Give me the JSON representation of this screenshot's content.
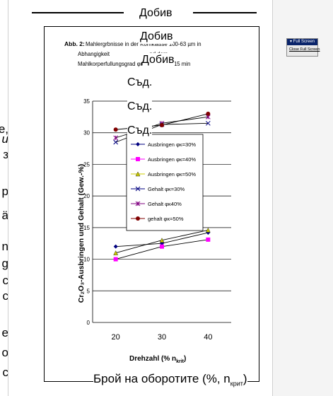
{
  "figure_caption": {
    "prefix": "Abb. 2:",
    "lines": [
      "Mahlergrbnisse in der Kornklasse 100-63 µm in",
      "Abhangigkeit                          nd dem",
      "Mahlkorperfullungsgrad φκ, Mahldauer 15 min"
    ]
  },
  "overlay_labels": {
    "dobiv": [
      "Добив",
      "Добив",
      "Добив"
    ],
    "sad": [
      "Съд.",
      "Съд.",
      "Съд."
    ],
    "x_axis_translation": "Брой на оборотите (%, n",
    "x_axis_translation_sub": "крит",
    "x_axis_translation_close": ")"
  },
  "left_margin_chars": [
    "e,",
    "u",
    "з",
    "р",
    "ä",
    "n",
    "g",
    "c",
    "с",
    "e",
    "о",
    "c"
  ],
  "fullscreen_toolbar": {
    "title": "▾ Full Screen",
    "close_label": "Close Full Screen"
  },
  "chart_data": {
    "type": "line",
    "xlabel": "Drehzahl (% n",
    "xlabel_sub": "krit",
    "xlabel_close": ")",
    "ylabel": "Cr₂O₃-Ausbringen und Gehalt (Gew.-%)",
    "ylim": [
      0,
      35
    ],
    "yticks": [
      "0",
      "5",
      "10",
      "15",
      "20",
      "25",
      "30",
      "35"
    ],
    "xticks": [
      "20",
      "30",
      "40"
    ],
    "x": [
      20,
      30,
      40
    ],
    "grid": true,
    "legend_position": "center",
    "series": [
      {
        "name": "Ausbringen φκ=30%",
        "color": "#000080",
        "marker": "diamond",
        "values": [
          12,
          12.5,
          14.2
        ]
      },
      {
        "name": "Ausbringen φκ=40%",
        "color": "#ff00ff",
        "marker": "square",
        "values": [
          10,
          12,
          13.1
        ]
      },
      {
        "name": "Ausbringen φκ=50%",
        "color": "#cccc00",
        "marker": "triangle",
        "values": [
          11,
          13,
          14.6
        ]
      },
      {
        "name": "Gehalt φκ=30%",
        "color": "#000080",
        "marker": "x",
        "values": [
          28.5,
          31.3,
          31.5
        ]
      },
      {
        "name": "Gehalt φκ40%",
        "color": "#800080",
        "marker": "star",
        "values": [
          29.2,
          31.5,
          32.5
        ]
      },
      {
        "name": "gehalt φκ=50%",
        "color": "#800000",
        "marker": "circle",
        "values": [
          30.5,
          31.2,
          33
        ]
      }
    ]
  }
}
